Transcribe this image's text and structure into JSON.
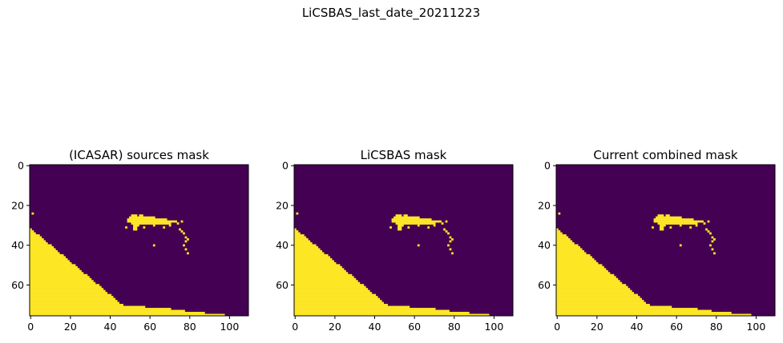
{
  "figure": {
    "suptitle": "LiCSBAS_last_date_20211223"
  },
  "colors": {
    "masked": "#440154",
    "unmasked": "#fde725",
    "edge": "#1f9e89"
  },
  "chart_data": [
    {
      "type": "heatmap",
      "title": "(ICASAR) sources mask",
      "xlabel": "",
      "ylabel": "",
      "x_ticks": [
        0,
        20,
        40,
        60,
        80,
        100
      ],
      "y_ticks": [
        0,
        20,
        40,
        60
      ],
      "xlim": [
        -0.5,
        109.5
      ],
      "ylim": [
        75.5,
        -0.5
      ],
      "grid": false,
      "colormap": "viridis",
      "values": "binary mask (0 = purple, 1 = yellow)"
    },
    {
      "type": "heatmap",
      "title": "LiCSBAS mask",
      "xlabel": "",
      "ylabel": "",
      "x_ticks": [
        0,
        20,
        40,
        60,
        80,
        100
      ],
      "y_ticks": [
        0,
        20,
        40,
        60
      ],
      "xlim": [
        -0.5,
        109.5
      ],
      "ylim": [
        75.5,
        -0.5
      ],
      "grid": false,
      "colormap": "viridis",
      "values": "binary mask (0 = purple, 1 = yellow)"
    },
    {
      "type": "heatmap",
      "title": "Current combined mask",
      "xlabel": "",
      "ylabel": "",
      "x_ticks": [
        0,
        20,
        40,
        60,
        80,
        100
      ],
      "y_ticks": [
        0,
        20,
        40,
        60
      ],
      "xlim": [
        -0.5,
        109.5
      ],
      "ylim": [
        75.5,
        -0.5
      ],
      "grid": false,
      "colormap": "viridis",
      "values": "binary mask (0 = purple, 1 = yellow)"
    }
  ]
}
